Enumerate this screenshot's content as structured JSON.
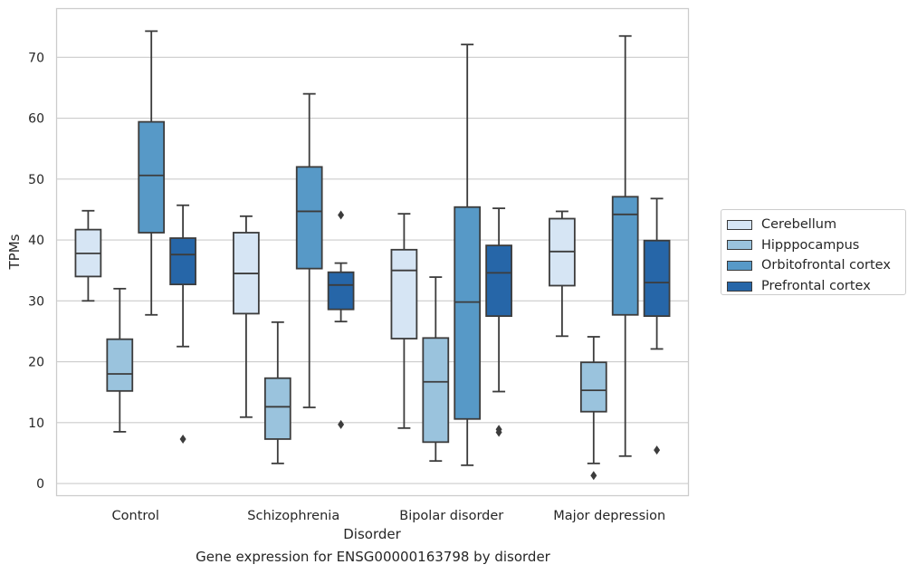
{
  "chart_data": {
    "type": "box",
    "caption": "Gene expression for ENSG00000163798 by disorder",
    "xlabel": "Disorder",
    "ylabel": "TPMs",
    "ylim": [
      -2,
      78
    ],
    "yticks": [
      0,
      10,
      20,
      30,
      40,
      50,
      60,
      70
    ],
    "grid": "horizontal",
    "legend_position": "right",
    "categories": [
      "Control",
      "Schizophrenia",
      "Bipolar disorder",
      "Major depression"
    ],
    "series": [
      {
        "name": "Cerebellum",
        "color": "#d6e5f4",
        "boxes": [
          {
            "whisker_low": 30.0,
            "q1": 34.0,
            "median": 37.8,
            "q3": 41.7,
            "whisker_high": 44.8,
            "outliers": []
          },
          {
            "whisker_low": 10.9,
            "q1": 27.9,
            "median": 34.5,
            "q3": 41.2,
            "whisker_high": 43.9,
            "outliers": []
          },
          {
            "whisker_low": 9.1,
            "q1": 23.8,
            "median": 35.0,
            "q3": 38.4,
            "whisker_high": 44.3,
            "outliers": []
          },
          {
            "whisker_low": 24.2,
            "q1": 32.5,
            "median": 38.1,
            "q3": 43.5,
            "whisker_high": 44.7,
            "outliers": []
          }
        ]
      },
      {
        "name": "Hipppocampus",
        "color": "#9ac3dd",
        "boxes": [
          {
            "whisker_low": 8.5,
            "q1": 15.2,
            "median": 18.0,
            "q3": 23.7,
            "whisker_high": 32.0,
            "outliers": []
          },
          {
            "whisker_low": 3.3,
            "q1": 7.3,
            "median": 12.6,
            "q3": 17.3,
            "whisker_high": 26.5,
            "outliers": []
          },
          {
            "whisker_low": 3.7,
            "q1": 6.8,
            "median": 16.7,
            "q3": 23.9,
            "whisker_high": 33.9,
            "outliers": []
          },
          {
            "whisker_low": 3.3,
            "q1": 11.8,
            "median": 15.3,
            "q3": 19.9,
            "whisker_high": 24.1,
            "outliers": [
              1.3
            ]
          }
        ]
      },
      {
        "name": "Orbitofrontal cortex",
        "color": "#5799c7",
        "boxes": [
          {
            "whisker_low": 27.7,
            "q1": 41.2,
            "median": 50.6,
            "q3": 59.4,
            "whisker_high": 74.3,
            "outliers": []
          },
          {
            "whisker_low": 12.5,
            "q1": 35.3,
            "median": 44.7,
            "q3": 52.0,
            "whisker_high": 64.0,
            "outliers": []
          },
          {
            "whisker_low": 3.0,
            "q1": 10.6,
            "median": 29.8,
            "q3": 45.4,
            "whisker_high": 72.1,
            "outliers": []
          },
          {
            "whisker_low": 4.5,
            "q1": 27.7,
            "median": 44.2,
            "q3": 47.1,
            "whisker_high": 73.5,
            "outliers": []
          }
        ]
      },
      {
        "name": "Prefrontal cortex",
        "color": "#2666a8",
        "boxes": [
          {
            "whisker_low": 22.5,
            "q1": 32.7,
            "median": 37.6,
            "q3": 40.3,
            "whisker_high": 45.7,
            "outliers": [
              7.3
            ]
          },
          {
            "whisker_low": 26.6,
            "q1": 28.6,
            "median": 32.6,
            "q3": 34.7,
            "whisker_high": 36.2,
            "outliers": [
              9.7,
              44.1
            ]
          },
          {
            "whisker_low": 15.1,
            "q1": 27.5,
            "median": 34.6,
            "q3": 39.1,
            "whisker_high": 45.2,
            "outliers": [
              8.4,
              8.9
            ]
          },
          {
            "whisker_low": 22.1,
            "q1": 27.5,
            "median": 33.0,
            "q3": 39.9,
            "whisker_high": 46.8,
            "outliers": [
              5.5
            ]
          }
        ]
      }
    ]
  }
}
